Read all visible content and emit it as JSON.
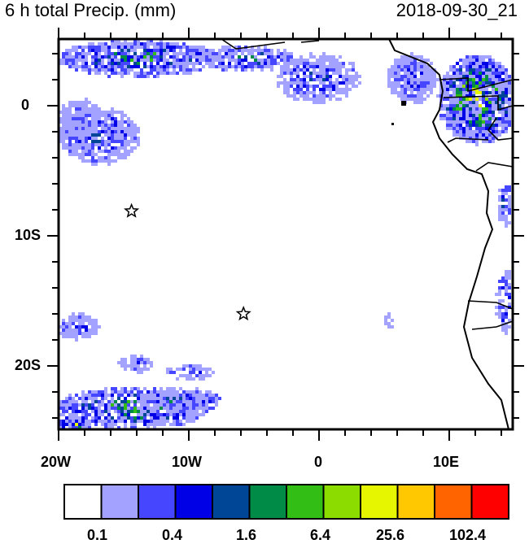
{
  "header": {
    "title": "6 h total Precip. (mm)",
    "valid_time": "2018-09-30_21"
  },
  "map": {
    "lon_range": [
      -20,
      14.875
    ],
    "lat_range": [
      -24.875,
      5.125
    ],
    "lon_labels": [
      "20W",
      "10W",
      "0",
      "10E"
    ],
    "lat_labels": [
      "0",
      "10S",
      "20S"
    ],
    "markers": [
      {
        "type": "star",
        "lon": -14.4,
        "lat": -8.1
      },
      {
        "type": "star",
        "lon": -5.8,
        "lat": -16.0
      }
    ]
  },
  "colorbar": {
    "colors": [
      "#ffffff",
      "#a3a3ff",
      "#4646ff",
      "#0000e6",
      "#004696",
      "#008c46",
      "#32be14",
      "#8cdc00",
      "#e6f500",
      "#ffc800",
      "#ff6400",
      "#ff0000"
    ],
    "labels": [
      "0.1",
      "0.4",
      "1.6",
      "6.4",
      "25.6",
      "102.4"
    ]
  }
}
